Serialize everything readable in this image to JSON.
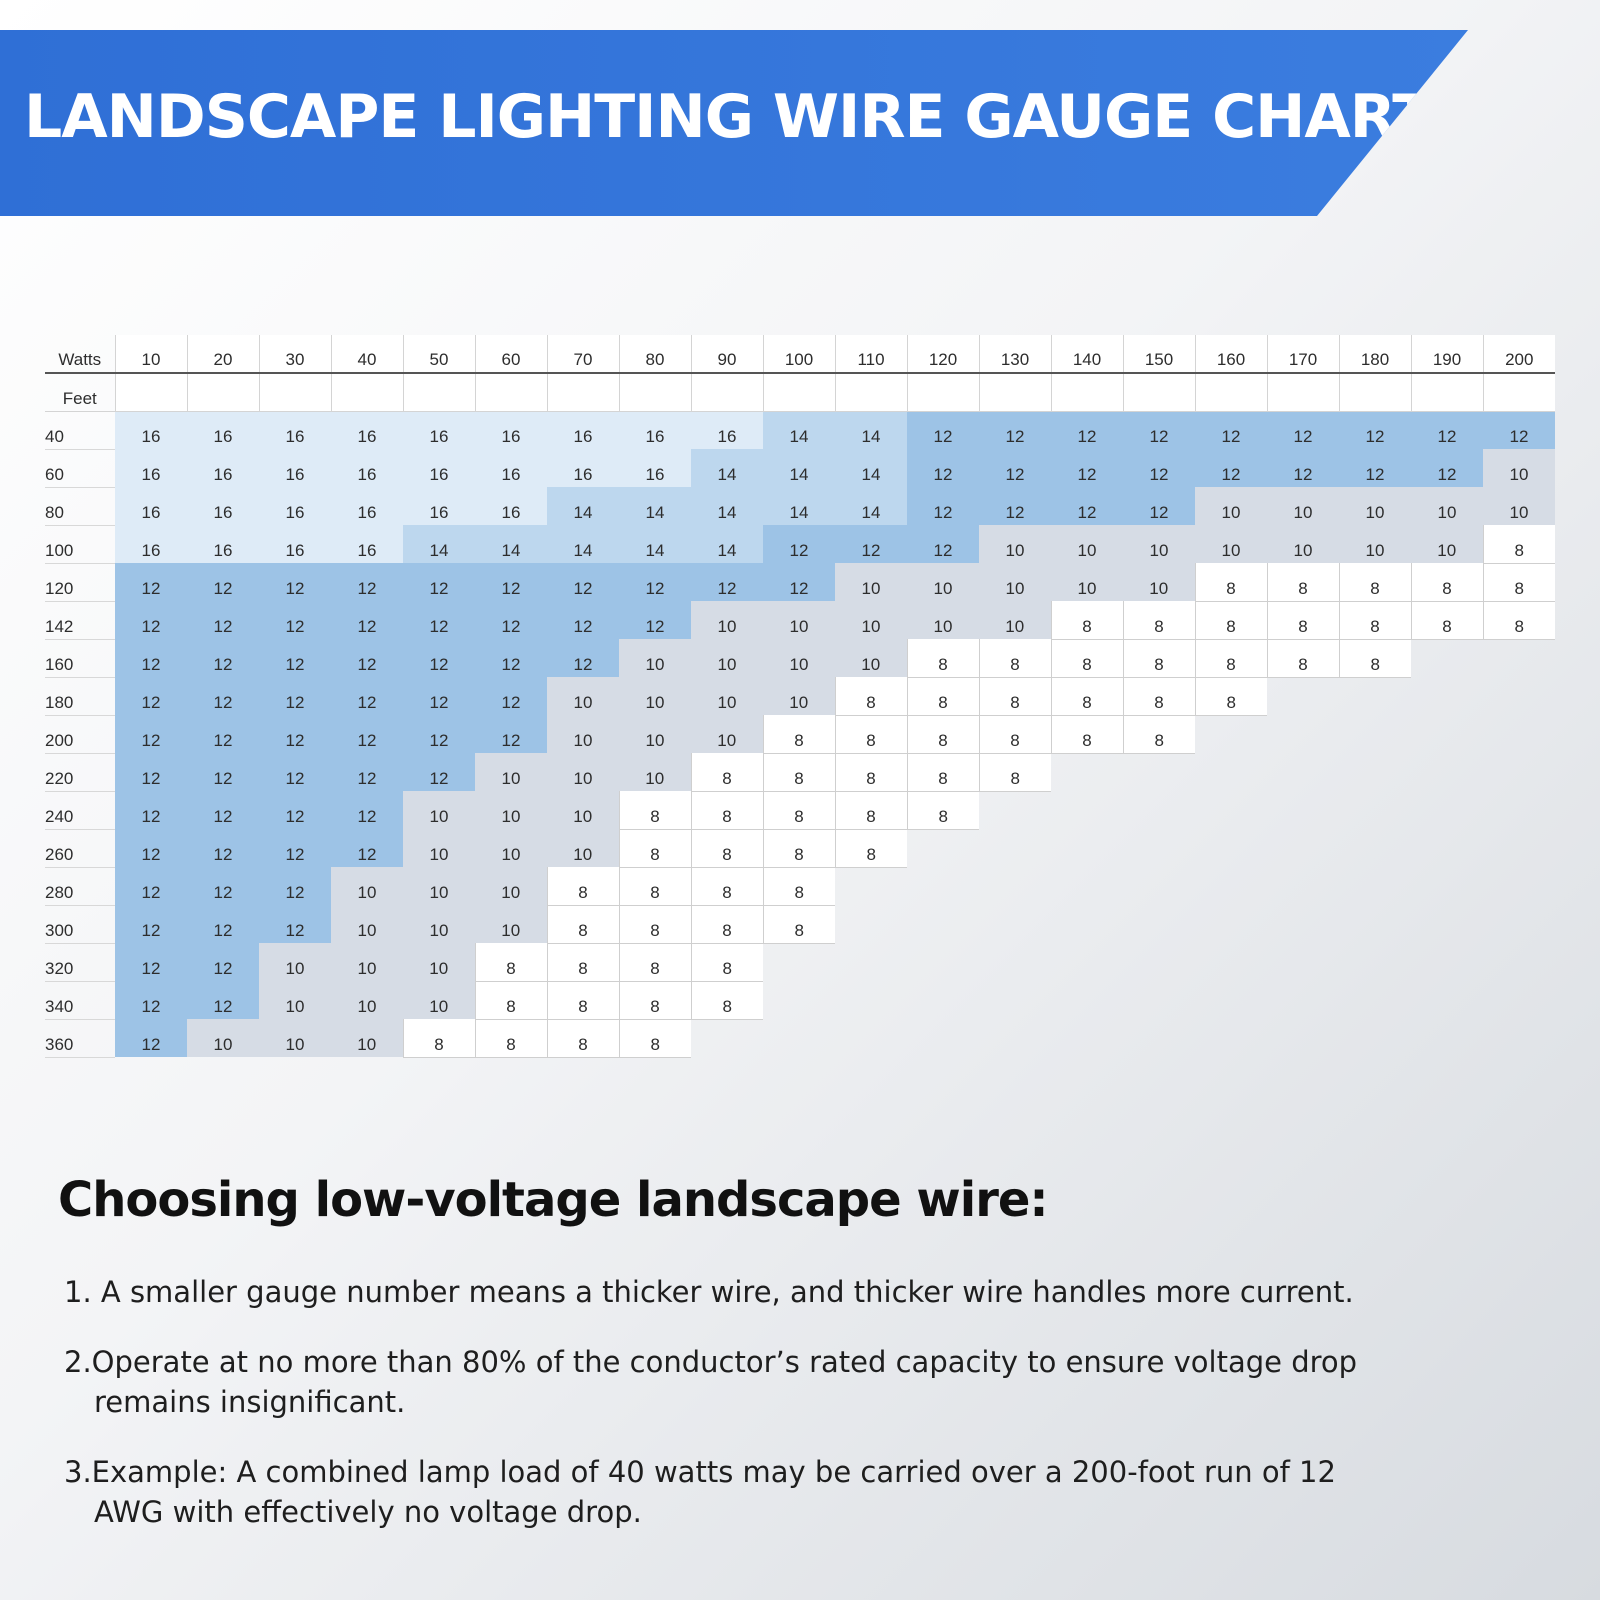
{
  "header": {
    "title": "LANDSCAPE LIGHTING WIRE GAUGE CHART"
  },
  "chart_data": {
    "type": "table",
    "title": "LANDSCAPE LIGHTING WIRE GAUGE CHART",
    "column_header_label": "Watts",
    "row_header_label": "Feet",
    "watts": [
      "10",
      "20",
      "30",
      "40",
      "50",
      "60",
      "70",
      "80",
      "90",
      "100",
      "110",
      "120",
      "130",
      "140",
      "150",
      "160",
      "170",
      "180",
      "190",
      "200"
    ],
    "rows": [
      {
        "feet": "40",
        "gauges": [
          "16",
          "16",
          "16",
          "16",
          "16",
          "16",
          "16",
          "16",
          "16",
          "14",
          "14",
          "12",
          "12",
          "12",
          "12",
          "12",
          "12",
          "12",
          "12",
          "12"
        ]
      },
      {
        "feet": "60",
        "gauges": [
          "16",
          "16",
          "16",
          "16",
          "16",
          "16",
          "16",
          "16",
          "14",
          "14",
          "14",
          "12",
          "12",
          "12",
          "12",
          "12",
          "12",
          "12",
          "12",
          "10"
        ]
      },
      {
        "feet": "80",
        "gauges": [
          "16",
          "16",
          "16",
          "16",
          "16",
          "16",
          "14",
          "14",
          "14",
          "14",
          "14",
          "12",
          "12",
          "12",
          "12",
          "10",
          "10",
          "10",
          "10",
          "10"
        ]
      },
      {
        "feet": "100",
        "gauges": [
          "16",
          "16",
          "16",
          "16",
          "14",
          "14",
          "14",
          "14",
          "14",
          "12",
          "12",
          "12",
          "10",
          "10",
          "10",
          "10",
          "10",
          "10",
          "10",
          "8"
        ]
      },
      {
        "feet": "120",
        "gauges": [
          "12",
          "12",
          "12",
          "12",
          "12",
          "12",
          "12",
          "12",
          "12",
          "12",
          "10",
          "10",
          "10",
          "10",
          "10",
          "8",
          "8",
          "8",
          "8",
          "8"
        ]
      },
      {
        "feet": "142",
        "gauges": [
          "12",
          "12",
          "12",
          "12",
          "12",
          "12",
          "12",
          "12",
          "10",
          "10",
          "10",
          "10",
          "10",
          "8",
          "8",
          "8",
          "8",
          "8",
          "8",
          "8"
        ]
      },
      {
        "feet": "160",
        "gauges": [
          "12",
          "12",
          "12",
          "12",
          "12",
          "12",
          "12",
          "10",
          "10",
          "10",
          "10",
          "8",
          "8",
          "8",
          "8",
          "8",
          "8",
          "8"
        ]
      },
      {
        "feet": "180",
        "gauges": [
          "12",
          "12",
          "12",
          "12",
          "12",
          "12",
          "10",
          "10",
          "10",
          "10",
          "8",
          "8",
          "8",
          "8",
          "8",
          "8"
        ]
      },
      {
        "feet": "200",
        "gauges": [
          "12",
          "12",
          "12",
          "12",
          "12",
          "12",
          "10",
          "10",
          "10",
          "8",
          "8",
          "8",
          "8",
          "8",
          "8"
        ]
      },
      {
        "feet": "220",
        "gauges": [
          "12",
          "12",
          "12",
          "12",
          "12",
          "10",
          "10",
          "10",
          "8",
          "8",
          "8",
          "8",
          "8"
        ]
      },
      {
        "feet": "240",
        "gauges": [
          "12",
          "12",
          "12",
          "12",
          "10",
          "10",
          "10",
          "8",
          "8",
          "8",
          "8",
          "8"
        ]
      },
      {
        "feet": "260",
        "gauges": [
          "12",
          "12",
          "12",
          "12",
          "10",
          "10",
          "10",
          "8",
          "8",
          "8",
          "8"
        ]
      },
      {
        "feet": "280",
        "gauges": [
          "12",
          "12",
          "12",
          "10",
          "10",
          "10",
          "8",
          "8",
          "8",
          "8"
        ]
      },
      {
        "feet": "300",
        "gauges": [
          "12",
          "12",
          "12",
          "10",
          "10",
          "10",
          "8",
          "8",
          "8",
          "8"
        ]
      },
      {
        "feet": "320",
        "gauges": [
          "12",
          "12",
          "10",
          "10",
          "10",
          "8",
          "8",
          "8",
          "8"
        ]
      },
      {
        "feet": "340",
        "gauges": [
          "12",
          "12",
          "10",
          "10",
          "10",
          "8",
          "8",
          "8",
          "8"
        ]
      },
      {
        "feet": "360",
        "gauges": [
          "12",
          "10",
          "10",
          "10",
          "8",
          "8",
          "8",
          "8"
        ]
      }
    ],
    "gauge_colors": {
      "16": "#deebf7",
      "14": "#bdd7ee",
      "12": "#9dc3e6",
      "10": "#d6dce5",
      "8": "#ffffff"
    }
  },
  "notes": {
    "heading": "Choosing low-voltage landscape wire:",
    "item1": "1. A smaller gauge number means a thicker wire, and thicker wire handles more current.",
    "item2_line1": "2.Operate at no more than 80% of the conductor’s rated capacity to ensure voltage drop",
    "item2_line2": "remains insignificant.",
    "item3_line1": "3.Example: A combined lamp load of 40 watts may be carried over a 200-foot run of 12",
    "item3_line2": "AWG with effectively no voltage drop."
  }
}
